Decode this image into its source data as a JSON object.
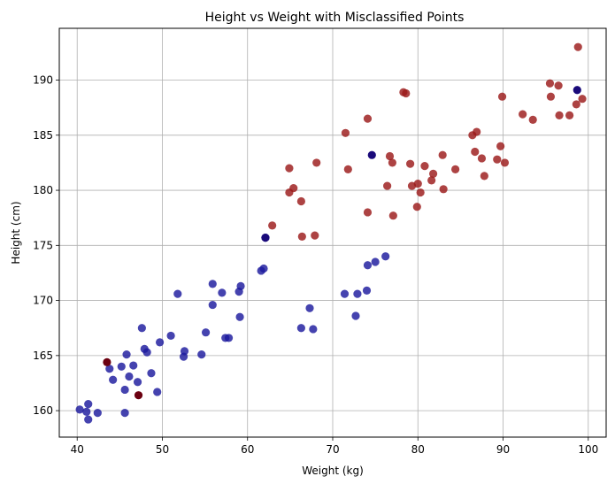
{
  "chart_data": {
    "type": "scatter",
    "title": "Height vs Weight with Misclassified Points",
    "xlabel": "Weight (kg)",
    "ylabel": "Height (cm)",
    "xlim": [
      37.9,
      102.1
    ],
    "ylim": [
      157.6,
      194.7
    ],
    "xticks": [
      40,
      50,
      60,
      70,
      80,
      90,
      100
    ],
    "yticks": [
      160,
      165,
      170,
      175,
      180,
      185,
      190
    ],
    "grid": true,
    "colors": {
      "class_a": "#1c1a9e",
      "class_b": "#9b1a1a",
      "misclassified_a": "#1a0a7a",
      "misclassified_b": "#6b0010"
    },
    "series": [
      {
        "points": [
          [
            40.3,
            160.1
          ],
          [
            41.1,
            159.9
          ],
          [
            41.3,
            160.6
          ],
          [
            41.3,
            159.2
          ],
          [
            42.4,
            159.8
          ],
          [
            45.6,
            159.8
          ],
          [
            43.8,
            163.8
          ],
          [
            44.2,
            162.8
          ],
          [
            45.2,
            164.0
          ],
          [
            45.6,
            161.9
          ],
          [
            45.8,
            165.1
          ],
          [
            46.1,
            163.1
          ],
          [
            46.6,
            164.1
          ],
          [
            47.1,
            162.6
          ],
          [
            47.6,
            167.5
          ],
          [
            47.9,
            165.6
          ],
          [
            48.2,
            165.3
          ],
          [
            48.7,
            163.4
          ],
          [
            49.4,
            161.7
          ],
          [
            49.7,
            166.2
          ],
          [
            51.0,
            166.8
          ],
          [
            51.8,
            170.6
          ],
          [
            52.5,
            164.9
          ],
          [
            52.6,
            165.4
          ],
          [
            54.6,
            165.1
          ],
          [
            55.1,
            167.1
          ],
          [
            55.9,
            171.5
          ],
          [
            55.9,
            169.6
          ],
          [
            57.0,
            170.7
          ],
          [
            57.4,
            166.6
          ],
          [
            57.8,
            166.6
          ],
          [
            59.0,
            170.8
          ],
          [
            59.1,
            168.5
          ],
          [
            59.2,
            171.3
          ],
          [
            61.6,
            172.7
          ],
          [
            61.9,
            172.9
          ],
          [
            62.1,
            175.7
          ],
          [
            66.3,
            167.5
          ],
          [
            67.3,
            169.3
          ],
          [
            67.7,
            167.4
          ],
          [
            71.4,
            170.6
          ],
          [
            72.7,
            168.6
          ],
          [
            72.9,
            170.6
          ],
          [
            74.0,
            170.9
          ],
          [
            74.1,
            173.2
          ],
          [
            75.0,
            173.5
          ],
          [
            76.2,
            174.0
          ]
        ]
      },
      {
        "points": [
          [
            62.9,
            176.8
          ],
          [
            64.9,
            182.0
          ],
          [
            64.9,
            179.8
          ],
          [
            65.4,
            180.2
          ],
          [
            66.3,
            179.0
          ],
          [
            66.4,
            175.8
          ],
          [
            67.9,
            175.9
          ],
          [
            68.1,
            182.5
          ],
          [
            71.5,
            185.2
          ],
          [
            71.8,
            181.9
          ],
          [
            74.1,
            186.5
          ],
          [
            74.1,
            178.0
          ],
          [
            76.4,
            180.4
          ],
          [
            76.7,
            183.1
          ],
          [
            77.0,
            182.5
          ],
          [
            77.1,
            177.7
          ],
          [
            78.3,
            188.9
          ],
          [
            78.6,
            188.8
          ],
          [
            79.1,
            182.4
          ],
          [
            79.3,
            180.4
          ],
          [
            79.9,
            178.5
          ],
          [
            80.0,
            180.6
          ],
          [
            80.3,
            179.8
          ],
          [
            80.8,
            182.2
          ],
          [
            81.6,
            180.9
          ],
          [
            81.8,
            181.5
          ],
          [
            82.9,
            183.2
          ],
          [
            83.0,
            180.1
          ],
          [
            84.4,
            181.9
          ],
          [
            86.4,
            185.0
          ],
          [
            86.7,
            183.5
          ],
          [
            86.9,
            185.3
          ],
          [
            87.5,
            182.9
          ],
          [
            87.8,
            181.3
          ],
          [
            89.3,
            182.8
          ],
          [
            89.7,
            184.0
          ],
          [
            89.9,
            188.5
          ],
          [
            90.2,
            182.5
          ],
          [
            92.3,
            186.9
          ],
          [
            93.5,
            186.4
          ],
          [
            95.5,
            189.7
          ],
          [
            95.6,
            188.5
          ],
          [
            96.5,
            189.5
          ],
          [
            96.6,
            186.8
          ],
          [
            97.8,
            186.8
          ],
          [
            98.6,
            187.8
          ],
          [
            98.8,
            193.0
          ],
          [
            99.3,
            188.3
          ]
        ]
      },
      {
        "points": [
          [
            62.1,
            175.7
          ],
          [
            74.6,
            183.2
          ],
          [
            98.7,
            189.1
          ]
        ]
      },
      {
        "points": [
          [
            43.5,
            164.4
          ],
          [
            47.2,
            161.4
          ]
        ]
      }
    ]
  }
}
